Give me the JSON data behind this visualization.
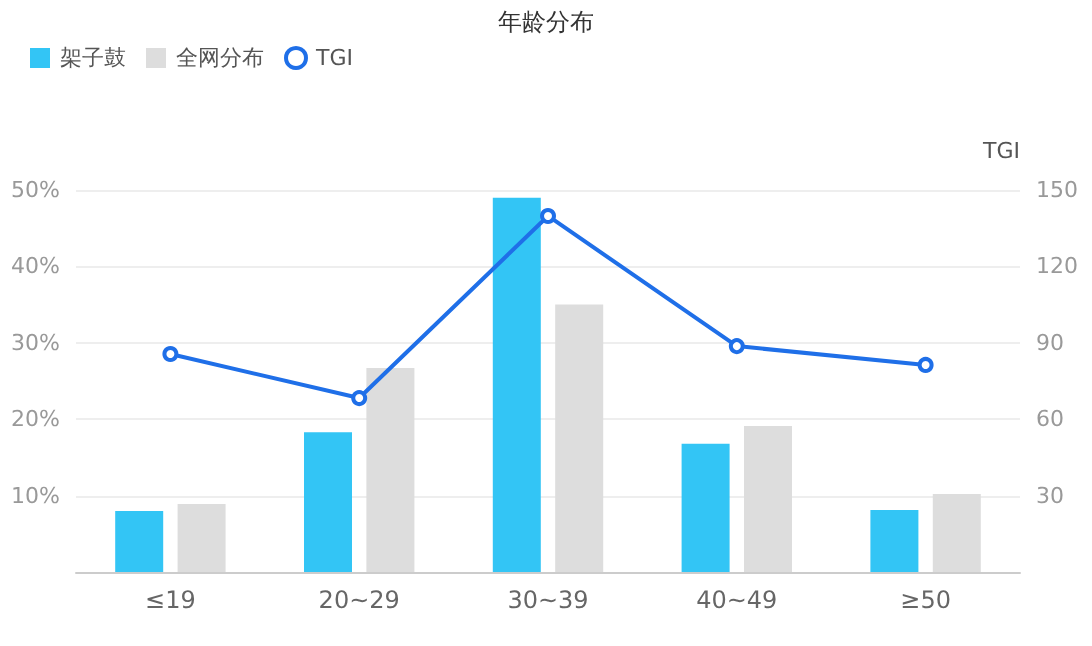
{
  "chart_data": {
    "type": "bar",
    "title": "年龄分布",
    "y2label": "TGI",
    "categories": [
      "≤19",
      "20~29",
      "30~39",
      "40~49",
      "≥50"
    ],
    "series": [
      {
        "name": "架子鼓",
        "color": "#33c5f5",
        "values": [
          8,
          18.3,
          49,
          16.8,
          8.1
        ]
      },
      {
        "name": "全网分布",
        "color": "#dddddd",
        "values": [
          8.9,
          26.7,
          35,
          19.1,
          10.2
        ]
      },
      {
        "name": "TGI",
        "type": "line",
        "axis": "y2",
        "color": "#1f6fe8",
        "values": [
          85.6,
          68.3,
          139.8,
          88.7,
          81.3
        ]
      }
    ],
    "ylim": [
      0,
      50
    ],
    "yticks": [
      {
        "value": 0,
        "label": null
      },
      {
        "value": 10,
        "label": "10%"
      },
      {
        "value": 20,
        "label": "20%"
      },
      {
        "value": 30,
        "label": "30%"
      },
      {
        "value": 40,
        "label": "40%"
      },
      {
        "value": 50,
        "label": "50%"
      }
    ],
    "y2lim": [
      0,
      150
    ],
    "y2ticks": [
      30,
      60,
      90,
      120,
      150
    ],
    "grid": "y",
    "legend": "top left",
    "marker": "circle",
    "line_style": "solid"
  }
}
